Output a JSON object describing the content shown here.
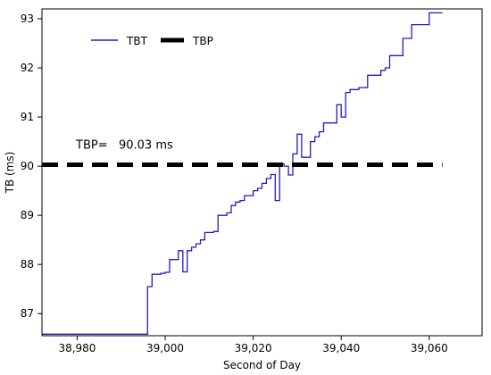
{
  "chart_data": {
    "type": "line",
    "xlabel": "Second of Day",
    "ylabel": "TB (ms)",
    "xlim": [
      38972,
      39072
    ],
    "ylim": [
      86.55,
      93.2
    ],
    "xticks": [
      38980,
      39000,
      39020,
      39040,
      39060
    ],
    "xtick_labels": [
      "38,980",
      "39,000",
      "39,020",
      "39,040",
      "39,060"
    ],
    "yticks": [
      87,
      88,
      89,
      90,
      91,
      92,
      93
    ],
    "ytick_labels": [
      "87",
      "88",
      "89",
      "90",
      "91",
      "92",
      "93"
    ],
    "grid": false,
    "legend": {
      "position": "top-left",
      "entries": [
        "TBT",
        "TBP"
      ]
    },
    "annotation": {
      "text": "TBP=   90.03 ms"
    },
    "colors": {
      "TBT": "#1f1fbf",
      "TBP": "#000000"
    },
    "series": [
      {
        "name": "TBT",
        "style": "steps",
        "points": [
          [
            38972,
            86.58
          ],
          [
            38996,
            86.58
          ],
          [
            38996,
            87.55
          ],
          [
            38997,
            87.55
          ],
          [
            38997,
            87.8
          ],
          [
            38999,
            87.82
          ],
          [
            39000,
            87.84
          ],
          [
            39001,
            88.1
          ],
          [
            39003,
            88.1
          ],
          [
            39003,
            88.28
          ],
          [
            39004,
            87.85
          ],
          [
            39005,
            88.28
          ],
          [
            39006,
            88.35
          ],
          [
            39007,
            88.42
          ],
          [
            39008,
            88.5
          ],
          [
            39009,
            88.65
          ],
          [
            39011,
            88.67
          ],
          [
            39012,
            89.0
          ],
          [
            39014,
            89.05
          ],
          [
            39015,
            89.2
          ],
          [
            39016,
            89.27
          ],
          [
            39017,
            89.3
          ],
          [
            39018,
            89.4
          ],
          [
            39019,
            89.4
          ],
          [
            39020,
            89.5
          ],
          [
            39021,
            89.55
          ],
          [
            39022,
            89.65
          ],
          [
            39023,
            89.75
          ],
          [
            39024,
            89.83
          ],
          [
            39025,
            89.3
          ],
          [
            39026,
            90.05
          ],
          [
            39027,
            90.0
          ],
          [
            39028,
            89.82
          ],
          [
            39029,
            90.25
          ],
          [
            39030,
            90.65
          ],
          [
            39031,
            90.18
          ],
          [
            39033,
            90.5
          ],
          [
            39034,
            90.6
          ],
          [
            39035,
            90.7
          ],
          [
            39036,
            90.88
          ],
          [
            39039,
            91.25
          ],
          [
            39040,
            91.0
          ],
          [
            39041,
            91.5
          ],
          [
            39042,
            91.56
          ],
          [
            39044,
            91.6
          ],
          [
            39046,
            91.85
          ],
          [
            39049,
            91.95
          ],
          [
            39050,
            92.0
          ],
          [
            39051,
            92.25
          ],
          [
            39054,
            92.6
          ],
          [
            39055,
            92.6
          ],
          [
            39056,
            92.88
          ],
          [
            39060,
            93.12
          ],
          [
            39063,
            93.12
          ]
        ]
      },
      {
        "name": "TBP",
        "style": "dashed",
        "x": [
          38972,
          39063
        ],
        "y": [
          90.03,
          90.03
        ]
      }
    ]
  }
}
